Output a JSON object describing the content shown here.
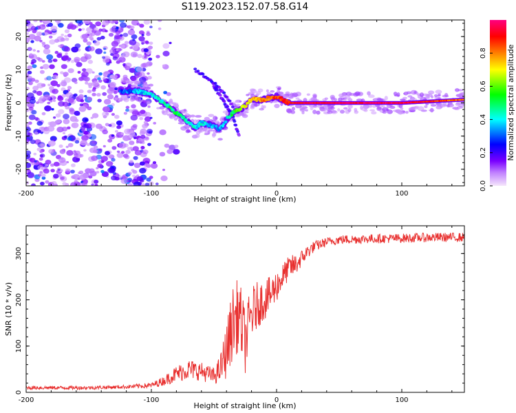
{
  "title": "S119.2023.152.07.58.G14",
  "chart_data": [
    {
      "type": "heatmap",
      "xlabel": "Height of straight line (km)",
      "ylabel": "Frequency (Hz)",
      "xlim": [
        -200,
        150
      ],
      "ylim": [
        -25,
        25
      ],
      "xticks": [
        -200,
        -100,
        0,
        100
      ],
      "yticks": [
        -20,
        -10,
        0,
        10,
        20
      ],
      "colorbar": {
        "label": "Normalized spectral amplitude",
        "range": [
          0,
          1
        ],
        "ticks": [
          0.0,
          0.2,
          0.4,
          0.6,
          0.8
        ],
        "colormap": [
          "#f5e6fb",
          "#7a00ff",
          "#0000ff",
          "#00ffff",
          "#00ff00",
          "#ffff00",
          "#ff8000",
          "#ff0000",
          "#ff0080"
        ]
      },
      "ridge": {
        "description": "dominant frequency ridge",
        "x": [
          -125,
          -110,
          -100,
          -90,
          -80,
          -70,
          -65,
          -60,
          -50,
          -45,
          -40,
          -35,
          -30,
          -25,
          -20,
          -10,
          0,
          10,
          50,
          100,
          150
        ],
        "y": [
          3.5,
          3.5,
          2.5,
          0,
          -3,
          -6,
          -7.5,
          -6,
          -7,
          -8,
          -5,
          -3,
          -2,
          -1,
          1,
          1,
          2,
          0,
          0,
          0,
          1
        ],
        "amplitude": [
          0.3,
          0.35,
          0.4,
          0.45,
          0.5,
          0.45,
          0.4,
          0.4,
          0.35,
          0.35,
          0.4,
          0.5,
          0.6,
          0.7,
          0.75,
          0.8,
          0.85,
          0.9,
          0.95,
          0.95,
          0.8
        ]
      },
      "noise_region": {
        "x_range": [
          -200,
          -100
        ],
        "description": "broadband noise"
      },
      "arcs": [
        {
          "x": [
            -65,
            -50,
            -40,
            -35
          ],
          "y": [
            10,
            6,
            2,
            -1
          ]
        },
        {
          "x": [
            -50,
            -45,
            -40,
            -35,
            -30
          ],
          "y": [
            5,
            2,
            -1,
            -4,
            -10
          ]
        }
      ]
    },
    {
      "type": "line",
      "xlabel": "Height of straight line (km)",
      "ylabel": "SNR (10 * v/v)",
      "xlim": [
        -200,
        150
      ],
      "ylim": [
        0,
        360
      ],
      "xticks": [
        -200,
        -100,
        0,
        100
      ],
      "yticks": [
        0,
        100,
        200,
        300
      ],
      "series": [
        {
          "name": "SNR",
          "color": "#e8302f",
          "x": [
            -200,
            -150,
            -120,
            -100,
            -90,
            -80,
            -70,
            -60,
            -50,
            -45,
            -40,
            -35,
            -30,
            -25,
            -20,
            -15,
            -10,
            -5,
            0,
            5,
            10,
            15,
            20,
            25,
            30,
            40,
            50,
            75,
            100,
            125,
            150
          ],
          "y": [
            10,
            10,
            12,
            15,
            25,
            40,
            50,
            45,
            35,
            50,
            90,
            150,
            170,
            110,
            170,
            190,
            200,
            210,
            230,
            250,
            270,
            275,
            290,
            305,
            315,
            325,
            330,
            332,
            333,
            335,
            335
          ],
          "amplitude": [
            4,
            4,
            4,
            6,
            10,
            18,
            22,
            20,
            18,
            30,
            60,
            80,
            80,
            70,
            60,
            50,
            45,
            40,
            35,
            30,
            25,
            25,
            18,
            15,
            12,
            10,
            10,
            10,
            10,
            10,
            10
          ]
        }
      ]
    }
  ]
}
